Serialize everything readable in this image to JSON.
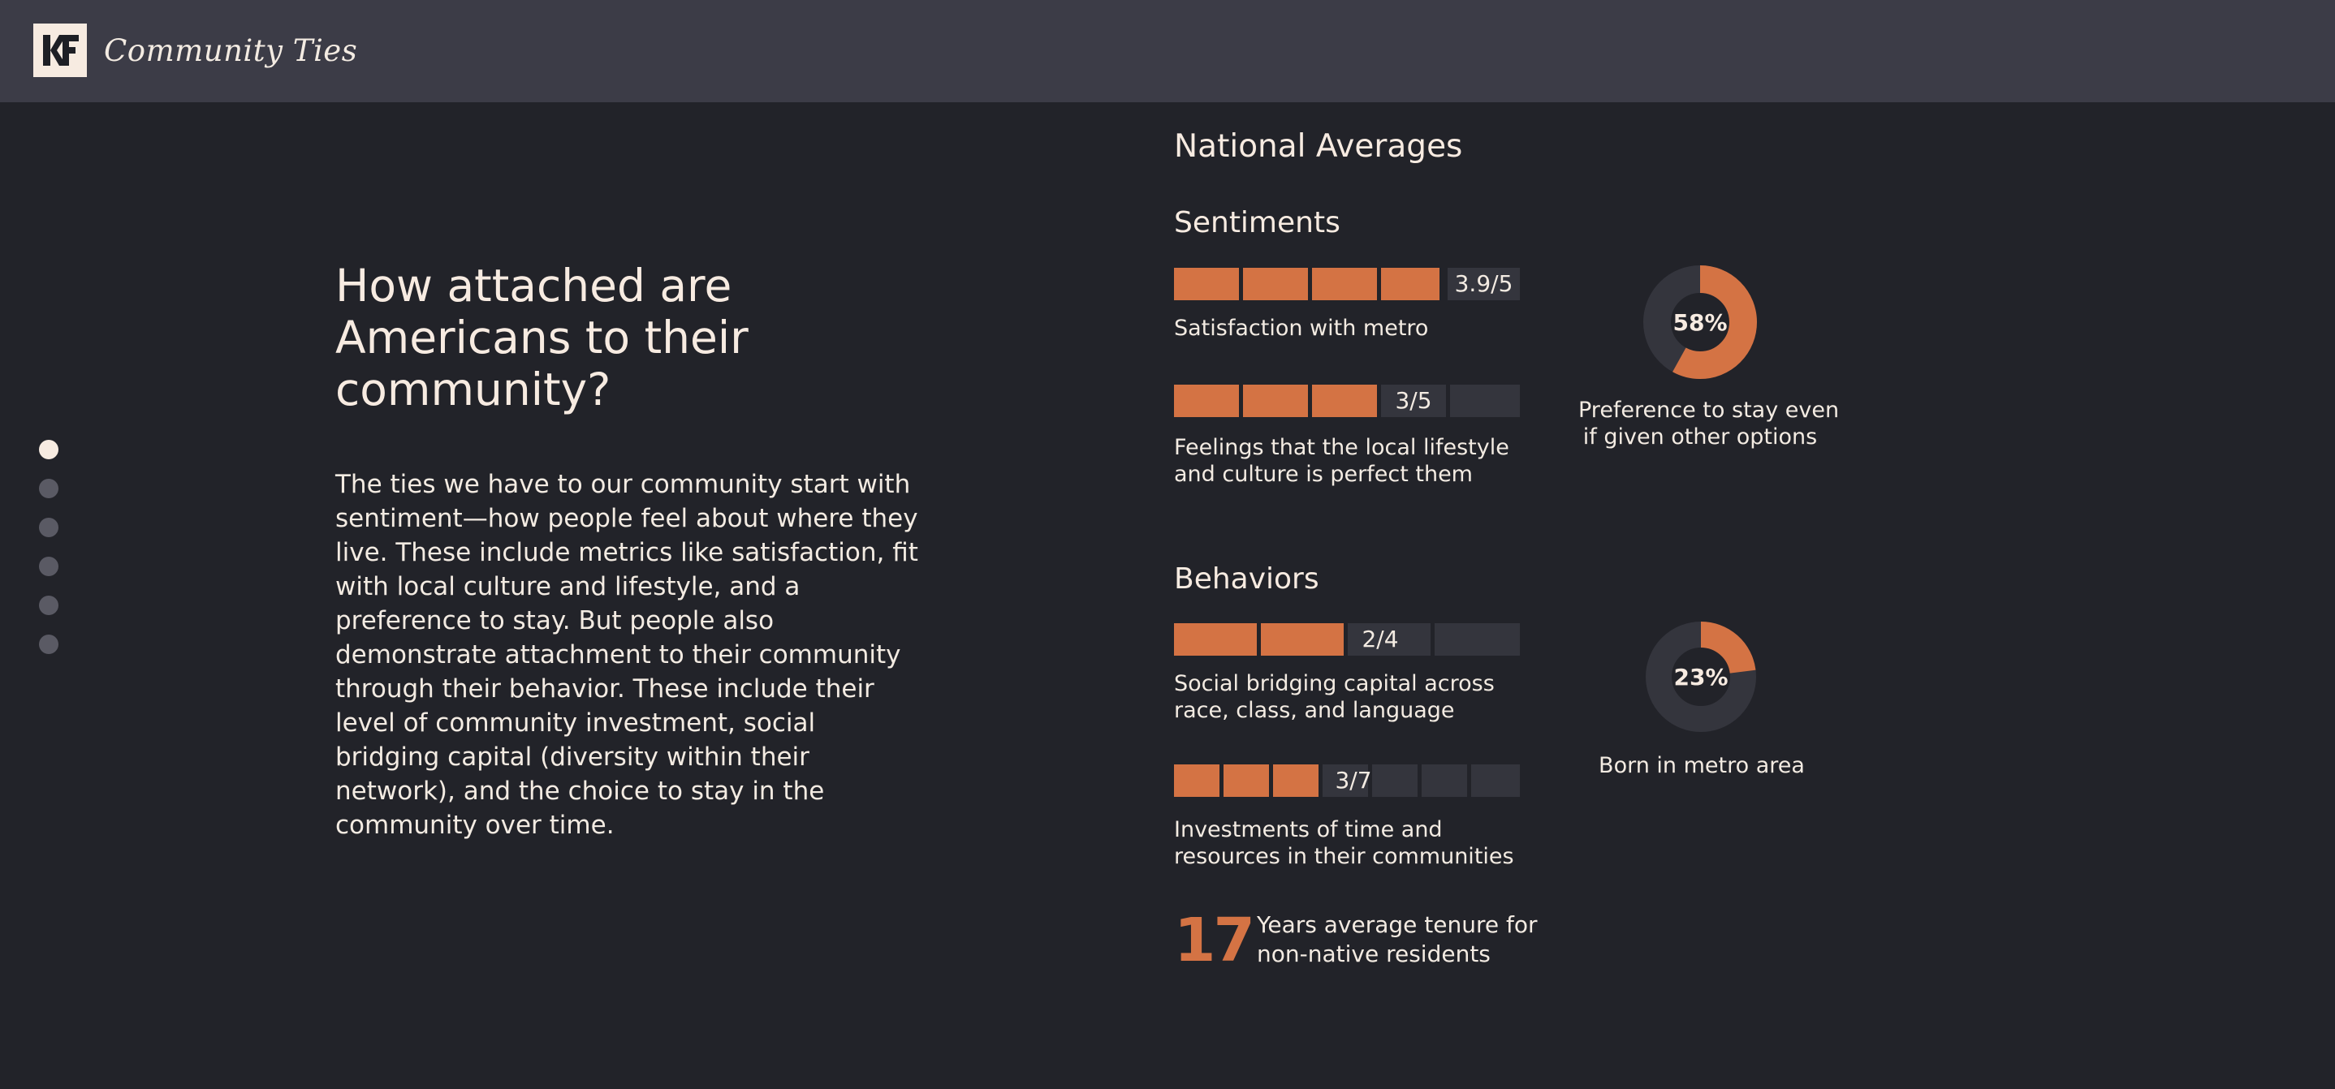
{
  "header": {
    "logo_text": "KF",
    "brand": "Community Ties"
  },
  "nav": {
    "dots": [
      {
        "active": true
      },
      {
        "active": false
      },
      {
        "active": false
      },
      {
        "active": false
      },
      {
        "active": false
      },
      {
        "active": false
      }
    ]
  },
  "intro": {
    "title": "How attached are Americans to their community?",
    "body": "The ties we have to our community start with sentiment—how people feel about where they live. These include metrics like satisfaction, fit with local culture and lifestyle, and a preference to stay. But people also demonstrate attachment to their community through their behavior. These include their level of community investment, social bridging capital (diversity within their network), and the choice to stay in the community over time."
  },
  "national": {
    "title": "National Averages",
    "sentiments": {
      "title": "Sentiments",
      "satisfaction": {
        "score_text": "3.9/5",
        "value": 3.9,
        "max": 5,
        "label": "Satisfaction with metro"
      },
      "lifestyle": {
        "score_text": "3/5",
        "value": 3,
        "max": 5,
        "label_line1": "Feelings that the local lifestyle",
        "label_line2": "and culture is perfect them"
      },
      "preference": {
        "percent_text": "58%",
        "value": 58,
        "label_line1": "Preference to stay even",
        "label_line2": "if given other options"
      }
    },
    "behaviors": {
      "title": "Behaviors",
      "bridging": {
        "score_text": "2/4",
        "value": 2,
        "max": 4,
        "label_line1": "Social bridging capital across",
        "label_line2": "race, class, and language"
      },
      "investments": {
        "score_text": "3/7",
        "value": 3,
        "max": 7,
        "label_line1": "Investments of time and",
        "label_line2": "resources in their communities"
      },
      "born": {
        "percent_text": "23%",
        "value": 23,
        "label": "Born in metro area"
      },
      "tenure": {
        "number": "17",
        "label_line1": "Years average tenure for",
        "label_line2": "non-native residents"
      }
    }
  },
  "colors": {
    "background": "#222329",
    "header": "#3c3c47",
    "accent": "#d47344",
    "track": "#34353d",
    "text": "#f3ebe2"
  }
}
